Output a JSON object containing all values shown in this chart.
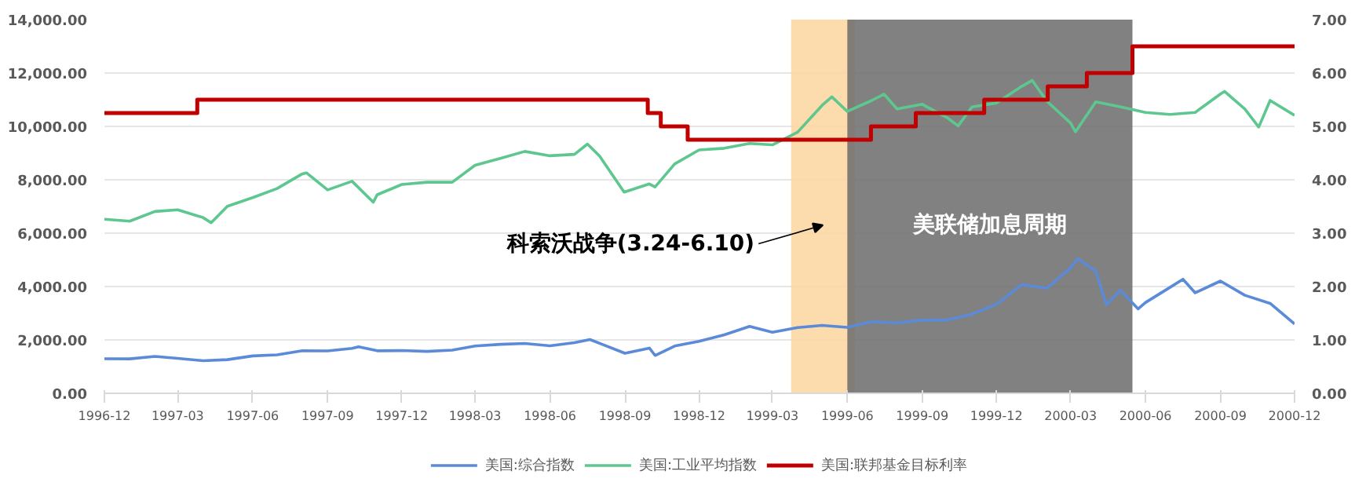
{
  "chart_data": {
    "type": "line",
    "xlim": [
      "1996-12",
      "2000-12"
    ],
    "xticks": [
      "1996-12",
      "1997-03",
      "1997-06",
      "1997-09",
      "1997-12",
      "1998-03",
      "1998-06",
      "1998-09",
      "1998-12",
      "1999-03",
      "1999-06",
      "1999-09",
      "1999-12",
      "2000-03",
      "2000-06",
      "2000-09",
      "2000-12"
    ],
    "ylim": [
      0,
      14000
    ],
    "yticks": [
      {
        "value": 0,
        "label": "0.00"
      },
      {
        "value": 2000,
        "label": "2,000.00"
      },
      {
        "value": 4000,
        "label": "4,000.00"
      },
      {
        "value": 6000,
        "label": "6,000.00"
      },
      {
        "value": 8000,
        "label": "8,000.00"
      },
      {
        "value": 10000,
        "label": "10,000.00"
      },
      {
        "value": 12000,
        "label": "12,000.00"
      },
      {
        "value": 14000,
        "label": "14,000.00"
      }
    ],
    "y2lim": [
      0,
      7
    ],
    "y2ticks": [
      {
        "value": 0,
        "label": "0.00"
      },
      {
        "value": 1,
        "label": "1.00"
      },
      {
        "value": 2,
        "label": "2.00"
      },
      {
        "value": 3,
        "label": "3.00"
      },
      {
        "value": 4,
        "label": "4.00"
      },
      {
        "value": 5,
        "label": "5.00"
      },
      {
        "value": 6,
        "label": "6.00"
      },
      {
        "value": 7,
        "label": "7.00"
      }
    ],
    "grid": "y",
    "legend": "bottom",
    "series": [
      {
        "name": "美国:综合指数",
        "color": "#5b8ad8",
        "x": [
          "1996-12-01",
          "1997-01-01",
          "1997-02-01",
          "1997-03-01",
          "1997-04-01",
          "1997-05-01",
          "1997-06-01",
          "1997-07-01",
          "1997-08-01",
          "1997-09-01",
          "1997-10-01",
          "1997-10-09",
          "1997-11-01",
          "1997-12-01",
          "1998-01-01",
          "1998-02-01",
          "1998-03-01",
          "1998-04-01",
          "1998-05-01",
          "1998-06-01",
          "1998-07-01",
          "1998-07-20",
          "1998-08-01",
          "1998-09-01",
          "1998-10-01",
          "1998-10-08",
          "1998-11-01",
          "1998-12-01",
          "1999-01-01",
          "1999-02-01",
          "1999-03-01",
          "1999-04-01",
          "1999-05-01",
          "1999-06-01",
          "1999-07-01",
          "1999-08-01",
          "1999-09-01",
          "1999-10-01",
          "1999-11-01",
          "1999-12-01",
          "2000-01-01",
          "2000-02-01",
          "2000-03-01",
          "2000-03-10",
          "2000-04-01",
          "2000-04-14",
          "2000-05-01",
          "2000-05-23",
          "2000-06-01",
          "2000-07-01",
          "2000-07-17",
          "2000-08-01",
          "2000-09-01",
          "2000-10-01",
          "2000-11-01",
          "2000-12-01"
        ],
        "values": [
          1293,
          1291,
          1380,
          1309,
          1222,
          1261,
          1400,
          1442,
          1594,
          1587,
          1686,
          1745,
          1593,
          1601,
          1570,
          1619,
          1771,
          1835,
          1868,
          1779,
          1895,
          2014,
          1872,
          1499,
          1694,
          1419,
          1771,
          1950,
          2193,
          2505,
          2288,
          2461,
          2543,
          2471,
          2686,
          2638,
          2739,
          2746,
          2966,
          3336,
          4069,
          3940,
          4697,
          5049,
          4573,
          3321,
          3861,
          3164,
          3400,
          3966,
          4274,
          3767,
          4206,
          3673,
          3370,
          2598
        ]
      },
      {
        "name": "美国:工业平均指数",
        "color": "#5ec78f",
        "x": [
          "1996-12-01",
          "1997-01-01",
          "1997-02-01",
          "1997-03-01",
          "1997-04-01",
          "1997-04-11",
          "1997-05-01",
          "1997-06-01",
          "1997-07-01",
          "1997-08-01",
          "1997-08-06",
          "1997-09-01",
          "1997-10-01",
          "1997-10-27",
          "1997-11-01",
          "1997-12-01",
          "1998-01-01",
          "1998-02-01",
          "1998-03-01",
          "1998-04-01",
          "1998-05-01",
          "1998-06-01",
          "1998-07-01",
          "1998-07-17",
          "1998-08-01",
          "1998-08-31",
          "1998-10-01",
          "1998-10-08",
          "1998-11-01",
          "1998-12-01",
          "1999-01-01",
          "1999-02-01",
          "1999-03-01",
          "1999-04-01",
          "1999-05-01",
          "1999-05-13",
          "1999-06-01",
          "1999-07-01",
          "1999-07-16",
          "1999-08-01",
          "1999-09-01",
          "1999-10-01",
          "1999-10-15",
          "1999-11-01",
          "1999-12-01",
          "2000-01-01",
          "2000-01-14",
          "2000-02-01",
          "2000-03-01",
          "2000-03-07",
          "2000-04-01",
          "2000-05-01",
          "2000-06-01",
          "2000-07-01",
          "2000-08-01",
          "2000-09-01",
          "2000-09-06",
          "2000-10-01",
          "2000-10-18",
          "2000-11-01",
          "2000-12-01"
        ],
        "values": [
          6522,
          6448,
          6813,
          6877,
          6584,
          6391,
          7009,
          7331,
          7673,
          8223,
          8259,
          7622,
          7945,
          7161,
          7442,
          7823,
          7908,
          7907,
          8546,
          8800,
          9063,
          8900,
          8952,
          9338,
          8883,
          7539,
          7843,
          7731,
          8592,
          9117,
          9181,
          9359,
          9307,
          9786,
          10789,
          11107,
          10560,
          10971,
          11209,
          10655,
          10829,
          10337,
          10019,
          10729,
          10878,
          11497,
          11723,
          10941,
          10128,
          9796,
          10922,
          10734,
          10522,
          10448,
          10522,
          11215,
          11310,
          10651,
          9975,
          10971,
          10415
        ]
      },
      {
        "name": "美国:联邦基金目标利率",
        "color": "#c00000",
        "type": "step",
        "axis": "y2",
        "x": [
          "1996-12-01",
          "1997-03-25",
          "1998-09-29",
          "1998-10-15",
          "1998-11-17",
          "1999-06-30",
          "1999-08-24",
          "1999-11-16",
          "2000-02-02",
          "2000-03-21",
          "2000-05-16",
          "2000-12-01"
        ],
        "values": [
          5.25,
          5.5,
          5.25,
          5.0,
          4.75,
          5.0,
          5.25,
          5.5,
          5.75,
          6.0,
          6.5,
          6.5
        ]
      }
    ],
    "bands": [
      {
        "axis": "x",
        "from": "1999-03-24",
        "to": "1999-06-10",
        "label": "科索沃战争(3.24-6.10)",
        "color": "#fcd59f"
      },
      {
        "axis": "x",
        "from": "1999-06-01",
        "to": "2000-05-16",
        "label": "美联储加息周期",
        "color": "#6b6b6b"
      }
    ]
  }
}
